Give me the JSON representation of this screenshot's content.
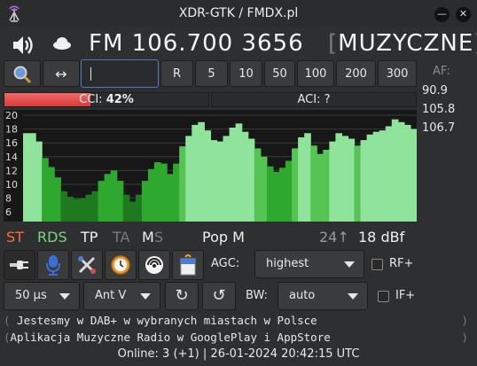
{
  "window": {
    "title": "XDR-GTK / FMDX.pl"
  },
  "tuner": {
    "band": "FM",
    "frequency": "106.700",
    "pi": "3656",
    "ps_open": "[",
    "ps": "MUZYCZNE",
    "ps_close": "]"
  },
  "toolbar": {
    "search_value": "",
    "arrows_label": "↔",
    "steps": [
      "R",
      "5",
      "10",
      "50",
      "100",
      "200",
      "300"
    ]
  },
  "af": {
    "label": "AF:",
    "list": [
      "90.9",
      "105.8",
      "106.7"
    ]
  },
  "meters": {
    "cci_prefix": "CCI: ",
    "cci_value": "42%",
    "aci_label": "ACI: ?"
  },
  "chart_data": {
    "type": "area",
    "y_ticks": [
      "20",
      "18",
      "16",
      "14",
      "12",
      "10",
      "8",
      "6"
    ],
    "ylim": [
      5,
      20
    ],
    "levels": [
      17.4,
      17.4,
      16.2,
      13.8,
      12.5,
      11.0,
      9.0,
      8.2,
      7.9,
      8.0,
      8.5,
      9.0,
      10.5,
      11.5,
      12.0,
      10.5,
      8.5,
      7.5,
      8.5,
      10.5,
      12.2,
      13.2,
      13.0,
      11.5,
      13.0,
      15.5,
      17.0,
      18.6,
      19.0,
      17.8,
      16.4,
      16.2,
      17.0,
      18.2,
      18.8,
      17.6,
      16.6,
      15.2,
      14.0,
      12.6,
      11.8,
      12.4,
      13.4,
      15.2,
      16.8,
      17.4,
      15.6,
      14.4,
      15.0,
      16.2,
      17.4,
      17.0,
      16.6,
      15.6,
      16.4,
      17.2,
      17.6,
      17.8,
      18.4,
      19.4,
      19.0,
      18.6,
      18.0
    ]
  },
  "status": {
    "st": "ST",
    "rds": "RDS",
    "tp": "TP",
    "ta": "TA",
    "m": "M",
    "s": "S",
    "pty": "Pop M",
    "signal_arrow": "24↑",
    "signal_value": "18 dBf",
    "colors": {
      "st": "#ff6b3d",
      "rds": "#7ad67a",
      "dim": "#8a8a8a",
      "active": "#f0f0f0"
    }
  },
  "controls": {
    "icons": [
      "plug-icon",
      "microphone-icon",
      "settings-tools-icon",
      "clock-icon",
      "antenna-signal-icon",
      "document-bell-icon"
    ],
    "agc_label": "AGC:",
    "agc_value": "highest",
    "rf_label": "RF+",
    "deemph_value": "50 µs",
    "ant_value": "Ant V",
    "bw_label": "BW:",
    "bw_value": "auto",
    "if_label": "IF+"
  },
  "radiotext": [
    {
      "open": "(",
      "text": " Jestesmy w  DAB+ w wybranych miastach w Polsce",
      "close": ")"
    },
    {
      "open": "(",
      "text": "Aplikacja Muzyczne Radio w GooglePlay i AppStore",
      "close": ")"
    }
  ],
  "footer": {
    "online": "Online: 3 (+1)",
    "sep": "|",
    "datetime": "26-01-2024 20:42:15 UTC"
  }
}
